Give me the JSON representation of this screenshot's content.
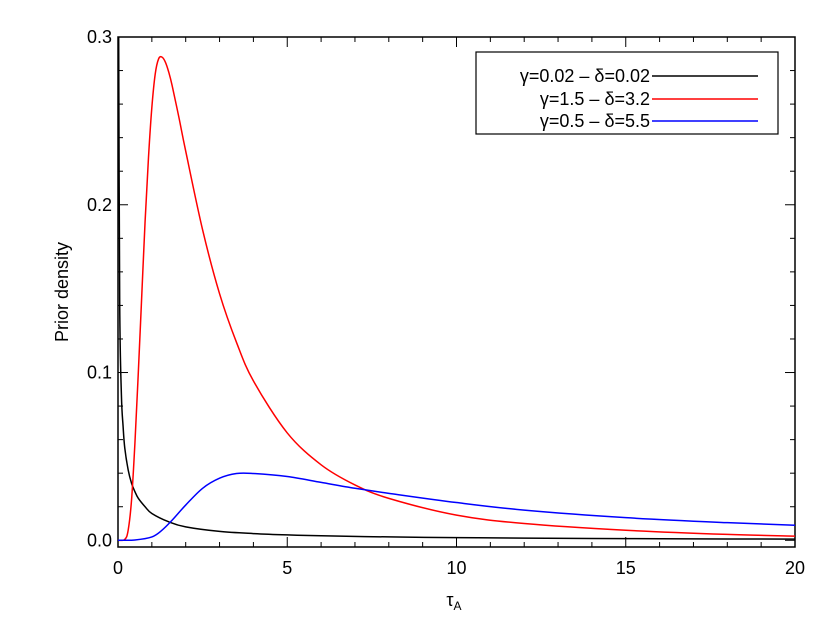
{
  "chart_data": {
    "type": "line",
    "title": "",
    "xlabel": "τ",
    "xlabel_sub": "A",
    "ylabel": "Prior density",
    "xlim": [
      0,
      20
    ],
    "ylim": [
      -0.004,
      0.3
    ],
    "x_ticks": [
      {
        "value": 0,
        "label": "0"
      },
      {
        "value": 5,
        "label": "5"
      },
      {
        "value": 10,
        "label": "10"
      },
      {
        "value": 15,
        "label": "15"
      },
      {
        "value": 20,
        "label": "20"
      }
    ],
    "y_ticks": [
      {
        "value": 0.0,
        "label": "0.0"
      },
      {
        "value": 0.1,
        "label": "0.1"
      },
      {
        "value": 0.2,
        "label": "0.2"
      },
      {
        "value": 0.3,
        "label": "0.3"
      }
    ],
    "grid": false,
    "legend_position": "top-right",
    "series": [
      {
        "name": "γ=0.02 – δ=0.02",
        "color": "#000000",
        "x": [
          0.02,
          0.05,
          0.1,
          0.15,
          0.2,
          0.3,
          0.4,
          0.5,
          0.6,
          0.8,
          1.0,
          1.5,
          2.0,
          3.0,
          4.0,
          5.0,
          6.0,
          8.0,
          10.0,
          12.0,
          15.0,
          18.0,
          20.0
        ],
        "y": [
          0.3,
          0.142,
          0.087,
          0.068,
          0.055,
          0.042,
          0.034,
          0.029,
          0.025,
          0.02,
          0.016,
          0.011,
          0.008,
          0.0053,
          0.004,
          0.0032,
          0.0027,
          0.002,
          0.0016,
          0.0013,
          0.001,
          0.0008,
          0.0007
        ]
      },
      {
        "name": "γ=1.5 – δ=3.2",
        "color": "#ff0000",
        "x": [
          0,
          0.2,
          0.3,
          0.4,
          0.5,
          0.6,
          0.7,
          0.8,
          0.9,
          1.0,
          1.1,
          1.2,
          1.3,
          1.4,
          1.5,
          1.6,
          1.8,
          2.0,
          2.5,
          3.0,
          3.5,
          4.0,
          5.0,
          6.0,
          7.0,
          8.0,
          10.0,
          12.0,
          15.0,
          18.0,
          20.0
        ],
        "y": [
          0,
          0.0005,
          0.006,
          0.024,
          0.058,
          0.1,
          0.145,
          0.19,
          0.228,
          0.258,
          0.278,
          0.287,
          0.288,
          0.285,
          0.279,
          0.271,
          0.252,
          0.232,
          0.185,
          0.147,
          0.118,
          0.095,
          0.064,
          0.045,
          0.033,
          0.025,
          0.015,
          0.01,
          0.006,
          0.0035,
          0.0025
        ]
      },
      {
        "name": "γ=0.5 – δ=5.5",
        "color": "#0000ff",
        "x": [
          0,
          0.5,
          1.0,
          1.3,
          1.6,
          2.0,
          2.5,
          3.0,
          3.5,
          4.0,
          5.0,
          6.0,
          7.0,
          8.0,
          10.0,
          12.0,
          15.0,
          18.0,
          20.0
        ],
        "y": [
          0,
          0.0002,
          0.002,
          0.006,
          0.012,
          0.021,
          0.031,
          0.037,
          0.0398,
          0.0398,
          0.038,
          0.0345,
          0.031,
          0.028,
          0.0225,
          0.018,
          0.0135,
          0.0105,
          0.009
        ]
      }
    ]
  }
}
